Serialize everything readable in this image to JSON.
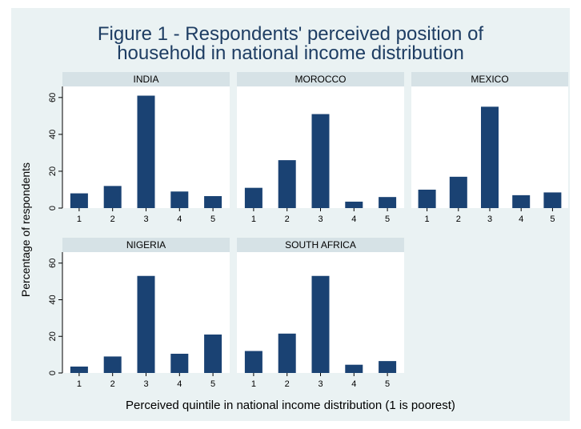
{
  "chart_data": {
    "type": "bar",
    "title": "Figure 1 - Respondents' perceived position of household in national income distribution",
    "title_lines": [
      "Figure 1 - Respondents' perceived position of",
      "household in national income distribution"
    ],
    "xlabel": "Perceived quintile in national income distribution (1 is poorest)",
    "ylabel": "Percentage of respondents",
    "categories": [
      "1",
      "2",
      "3",
      "4",
      "5"
    ],
    "yticks": [
      0,
      20,
      40,
      60
    ],
    "ylim": [
      0,
      66
    ],
    "bar_color": "#1a4273",
    "panels": [
      {
        "name": "INDIA",
        "values": [
          8,
          12,
          61,
          9,
          6.5
        ]
      },
      {
        "name": "MOROCCO",
        "values": [
          11,
          26,
          51,
          3.5,
          6
        ]
      },
      {
        "name": "MEXICO",
        "values": [
          10,
          17,
          55,
          7,
          8.5
        ]
      },
      {
        "name": "NIGERIA",
        "values": [
          3.5,
          9,
          53,
          10.5,
          21
        ]
      },
      {
        "name": "SOUTH AFRICA",
        "values": [
          12,
          21.5,
          53,
          4.5,
          6.5
        ]
      }
    ]
  }
}
